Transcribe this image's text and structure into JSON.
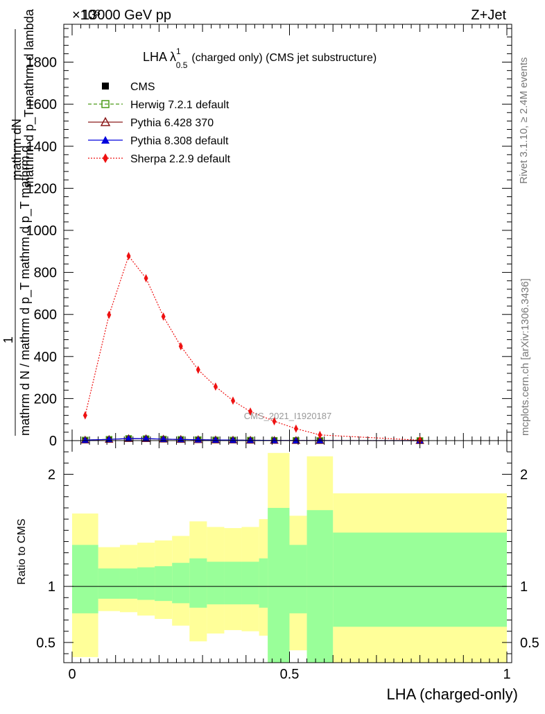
{
  "header": {
    "energy_label": "13000 GeV pp",
    "process_label": "Z+Jet",
    "exponent_label": "×10³"
  },
  "side_labels": {
    "rivet": "Rivet 3.1.10, ≥ 2.4M events",
    "mcplots": "mcplots.cern.ch [arXiv:1306.3436]"
  },
  "watermark": "CMS_2021_I1920187",
  "chart_data": [
    {
      "type": "line",
      "title": "LHA λ¹₀.₅ (charged only) (CMS jet substructure)",
      "title_parts": {
        "main": "LHA λ",
        "sup": "1",
        "sub": "0.5",
        "rest": "(charged only) (CMS jet substructure)"
      },
      "ylabel_numerator": "1",
      "ylabel_denominator_lines": [
        "mathrm d N / mathrm d p_T mathrm d p_T mathrm d lambda",
        "mathrm dN"
      ],
      "ylabel_lines": [
        "mathrm dN",
        "mathrm d p_T mathrm d lambda",
        "mathrm d N / mathrm d p_T mathrm d p_T mathrm d",
        "1"
      ],
      "xlim": [
        0,
        1
      ],
      "ylim": [
        0,
        1980
      ],
      "y_scale_note": "×10³",
      "yticks": [
        0,
        200,
        400,
        600,
        800,
        1000,
        1200,
        1400,
        1600,
        1800
      ],
      "ytick_labels": [
        "0",
        "200",
        "400",
        "600",
        "800",
        "1000",
        "1200",
        "1400",
        "1600",
        "1800"
      ],
      "x": [
        0.03,
        0.085,
        0.13,
        0.17,
        0.21,
        0.25,
        0.29,
        0.33,
        0.37,
        0.41,
        0.465,
        0.515,
        0.57,
        0.8
      ],
      "series": [
        {
          "name": "CMS",
          "color": "#000000",
          "marker": "square-filled",
          "line": "none",
          "values": [
            2,
            5,
            8,
            8,
            6,
            5,
            4,
            3,
            2,
            2,
            1,
            0.5,
            0.3,
            0.1
          ]
        },
        {
          "name": "Herwig 7.2.1 default",
          "color": "#4a9a18",
          "marker": "square-open",
          "line": "dashed",
          "values": [
            2.5,
            6,
            10,
            9,
            7,
            5.5,
            4.5,
            3,
            2.5,
            2,
            1.2,
            0.6,
            0.3,
            0.1
          ]
        },
        {
          "name": "Pythia 6.428 370",
          "color": "#8b1a1a",
          "marker": "triangle-open",
          "line": "solid",
          "values": [
            2.4,
            5.5,
            9.5,
            9,
            7,
            5.5,
            4.2,
            3,
            2.3,
            1.8,
            1,
            0.5,
            0.3,
            0.1
          ]
        },
        {
          "name": "Pythia 8.308 default",
          "color": "#0000dd",
          "marker": "triangle-filled",
          "line": "solid",
          "values": [
            2.6,
            6,
            10,
            9.5,
            7.2,
            5.6,
            4.4,
            3.1,
            2.4,
            1.9,
            1.1,
            0.55,
            0.3,
            0.1
          ]
        },
        {
          "name": "Sherpa 2.2.9 default",
          "color": "#ee1111",
          "marker": "diamond-filled",
          "line": "dotted",
          "values": [
            120,
            598,
            878,
            772,
            590,
            449,
            337,
            257,
            190,
            138,
            92,
            57,
            27,
            2
          ]
        }
      ]
    },
    {
      "type": "area",
      "ylabel": "Ratio to CMS",
      "xlabel": "LHA (charged-only)",
      "xlim": [
        0,
        1
      ],
      "ylim": [
        0.32,
        2.3
      ],
      "yticks": [
        0.5,
        1,
        2
      ],
      "ytick_labels": [
        "0.5",
        "1",
        "2"
      ],
      "xticks": [
        0,
        0.5,
        1
      ],
      "xtick_labels": [
        "0",
        "0.5",
        "1"
      ],
      "reference_line": 1,
      "bins": [
        {
          "lo": 0.0,
          "hi": 0.06,
          "stat_lo": 0.76,
          "stat_hi": 1.37,
          "tot_lo": 0.37,
          "tot_hi": 1.65
        },
        {
          "lo": 0.06,
          "hi": 0.11,
          "stat_lo": 0.89,
          "stat_hi": 1.16,
          "tot_lo": 0.78,
          "tot_hi": 1.35
        },
        {
          "lo": 0.11,
          "hi": 0.15,
          "stat_lo": 0.89,
          "stat_hi": 1.16,
          "tot_lo": 0.77,
          "tot_hi": 1.37
        },
        {
          "lo": 0.15,
          "hi": 0.19,
          "stat_lo": 0.88,
          "stat_hi": 1.17,
          "tot_lo": 0.74,
          "tot_hi": 1.39
        },
        {
          "lo": 0.19,
          "hi": 0.23,
          "stat_lo": 0.87,
          "stat_hi": 1.18,
          "tot_lo": 0.71,
          "tot_hi": 1.41
        },
        {
          "lo": 0.23,
          "hi": 0.27,
          "stat_lo": 0.85,
          "stat_hi": 1.21,
          "tot_lo": 0.65,
          "tot_hi": 1.45
        },
        {
          "lo": 0.27,
          "hi": 0.31,
          "stat_lo": 0.81,
          "stat_hi": 1.25,
          "tot_lo": 0.51,
          "tot_hi": 1.58
        },
        {
          "lo": 0.31,
          "hi": 0.35,
          "stat_lo": 0.84,
          "stat_hi": 1.22,
          "tot_lo": 0.58,
          "tot_hi": 1.53
        },
        {
          "lo": 0.35,
          "hi": 0.39,
          "stat_lo": 0.84,
          "stat_hi": 1.22,
          "tot_lo": 0.61,
          "tot_hi": 1.52
        },
        {
          "lo": 0.39,
          "hi": 0.43,
          "stat_lo": 0.84,
          "stat_hi": 1.22,
          "tot_lo": 0.6,
          "tot_hi": 1.53
        },
        {
          "lo": 0.43,
          "hi": 0.45,
          "stat_lo": 0.81,
          "stat_hi": 1.25,
          "tot_lo": 0.56,
          "tot_hi": 1.6
        },
        {
          "lo": 0.45,
          "hi": 0.5,
          "stat_lo": 0.32,
          "stat_hi": 1.7,
          "tot_lo": 0.32,
          "tot_hi": 2.19
        },
        {
          "lo": 0.5,
          "hi": 0.54,
          "stat_lo": 0.76,
          "stat_hi": 1.37,
          "tot_lo": 0.43,
          "tot_hi": 1.63
        },
        {
          "lo": 0.54,
          "hi": 0.6,
          "stat_lo": 0.32,
          "stat_hi": 1.68,
          "tot_lo": 0.32,
          "tot_hi": 2.16
        },
        {
          "lo": 0.6,
          "hi": 1.0,
          "stat_lo": 0.64,
          "stat_hi": 1.48,
          "tot_lo": 0.32,
          "tot_hi": 1.83
        }
      ],
      "colors": {
        "stat": "#99ff99",
        "total": "#ffff99",
        "reference": "#000000"
      }
    }
  ]
}
